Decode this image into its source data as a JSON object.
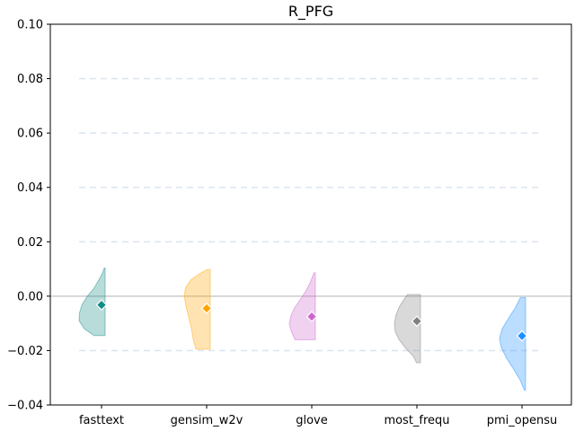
{
  "chart_data": {
    "type": "violin",
    "title": "R_PFG",
    "xlabel": "",
    "ylabel": "",
    "ylim": [
      -0.04,
      0.1
    ],
    "yticks": [
      -0.04,
      -0.02,
      0.0,
      0.02,
      0.04,
      0.06,
      0.08,
      0.1
    ],
    "ytick_labels": [
      "−0.04",
      "−0.02",
      "0.00",
      "0.02",
      "0.04",
      "0.06",
      "0.08",
      "0.10"
    ],
    "grid": "horizontal dashed",
    "reference_line": 0.0,
    "categories": [
      "fasttext",
      "gensim_w2v",
      "glove",
      "most_frequ",
      "pmi_opensu"
    ],
    "series": [
      {
        "category": "fasttext",
        "color": "#138a85",
        "marker_value": -0.0032,
        "range": [
          -0.0145,
          0.0104
        ],
        "profile": [
          [
            -0.0145,
            0.42
          ],
          [
            -0.012,
            0.8
          ],
          [
            -0.009,
            1.0
          ],
          [
            -0.006,
            0.98
          ],
          [
            -0.003,
            0.88
          ],
          [
            0.0,
            0.68
          ],
          [
            0.003,
            0.42
          ],
          [
            0.006,
            0.24
          ],
          [
            0.0085,
            0.1
          ],
          [
            0.0104,
            0.03
          ]
        ]
      },
      {
        "category": "gensim_w2v",
        "color": "#ffa500",
        "marker_value": -0.0045,
        "range": [
          -0.0195,
          0.0098
        ],
        "profile": [
          [
            -0.0195,
            0.55
          ],
          [
            -0.016,
            0.65
          ],
          [
            -0.012,
            0.72
          ],
          [
            -0.008,
            0.82
          ],
          [
            -0.004,
            0.92
          ],
          [
            0.0,
            1.0
          ],
          [
            0.003,
            0.95
          ],
          [
            0.006,
            0.75
          ],
          [
            0.008,
            0.45
          ],
          [
            0.0098,
            0.12
          ]
        ]
      },
      {
        "category": "glove",
        "color": "#cc66cc",
        "marker_value": -0.0075,
        "range": [
          -0.016,
          0.0086
        ],
        "profile": [
          [
            -0.016,
            0.78
          ],
          [
            -0.013,
            0.92
          ],
          [
            -0.01,
            1.0
          ],
          [
            -0.007,
            0.93
          ],
          [
            -0.004,
            0.78
          ],
          [
            -0.001,
            0.56
          ],
          [
            0.002,
            0.36
          ],
          [
            0.005,
            0.2
          ],
          [
            0.0086,
            0.05
          ]
        ]
      },
      {
        "category": "most_frequ",
        "color": "#808080",
        "marker_value": -0.0092,
        "range": [
          -0.0245,
          0.0006
        ],
        "profile": [
          [
            -0.0245,
            0.15
          ],
          [
            -0.022,
            0.28
          ],
          [
            -0.019,
            0.58
          ],
          [
            -0.016,
            0.82
          ],
          [
            -0.013,
            0.97
          ],
          [
            -0.01,
            1.0
          ],
          [
            -0.007,
            0.94
          ],
          [
            -0.004,
            0.82
          ],
          [
            -0.001,
            0.62
          ],
          [
            0.0006,
            0.5
          ]
        ]
      },
      {
        "category": "pmi_opensu",
        "color": "#1e90ff",
        "marker_value": -0.0146,
        "range": [
          -0.0345,
          -0.0005
        ],
        "profile": [
          [
            -0.0345,
            0.05
          ],
          [
            -0.031,
            0.2
          ],
          [
            -0.027,
            0.45
          ],
          [
            -0.023,
            0.72
          ],
          [
            -0.019,
            0.93
          ],
          [
            -0.0155,
            1.0
          ],
          [
            -0.012,
            0.9
          ],
          [
            -0.008,
            0.65
          ],
          [
            -0.004,
            0.38
          ],
          [
            -0.0005,
            0.2
          ]
        ]
      }
    ]
  }
}
